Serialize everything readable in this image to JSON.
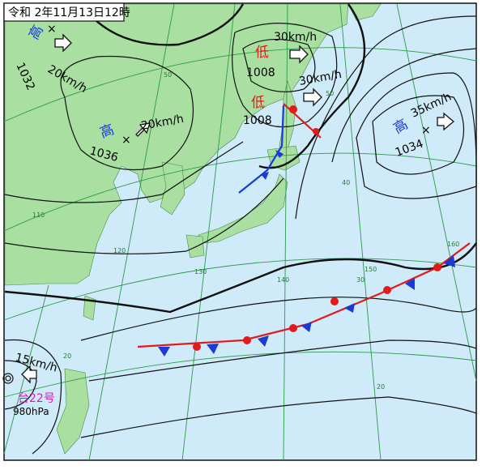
{
  "header": {
    "title": "令和 2年11月13日12時"
  },
  "systems": [
    {
      "label": "高",
      "pressure": "1032",
      "movement": "20km/h"
    },
    {
      "label": "低",
      "pressure": "1008",
      "movement": "30km/h"
    },
    {
      "label": "低",
      "pressure": "1008",
      "movement": "30km/h"
    },
    {
      "label": "高",
      "pressure": "1036",
      "movement": "20km/h"
    },
    {
      "label": "高",
      "pressure": "1034",
      "movement": "35km/h"
    }
  ],
  "typhoon": {
    "name": "台22号",
    "pressure": "980hPa",
    "movement": "15km/h"
  },
  "grid_labels": [
    "50",
    "50",
    "40",
    "30",
    "20",
    "20",
    "110",
    "120",
    "130",
    "140",
    "150",
    "160"
  ]
}
